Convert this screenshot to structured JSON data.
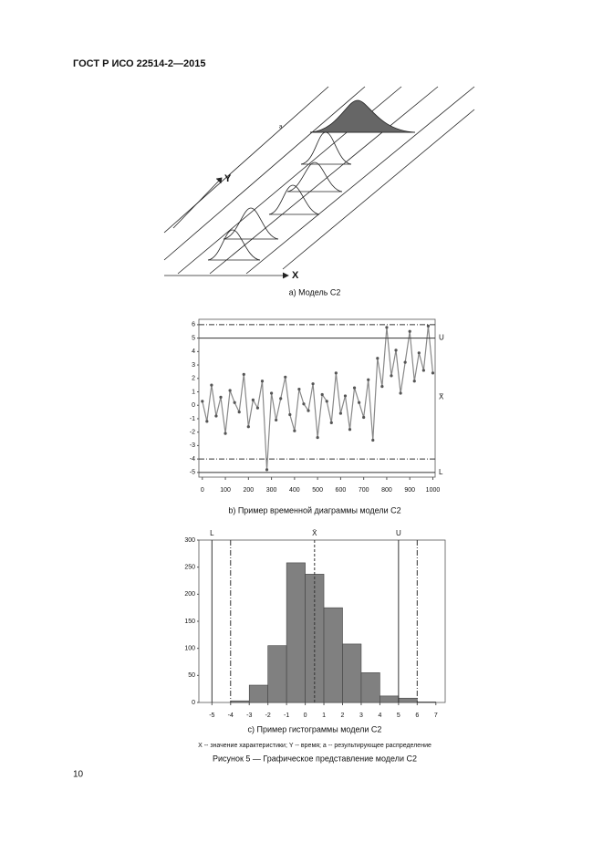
{
  "header": {
    "title": "ГОСТ Р ИСО 22514-2—2015"
  },
  "figure_a": {
    "label_y": "Y",
    "label_x": "X",
    "label_a": "a",
    "caption": "а) Модель С2"
  },
  "chart_data": [
    {
      "type": "line",
      "caption": "b) Пример временной диаграммы модели С2",
      "x": [
        0,
        20,
        40,
        60,
        80,
        100,
        120,
        140,
        160,
        180,
        200,
        220,
        240,
        260,
        280,
        300,
        320,
        340,
        360,
        380,
        400,
        420,
        440,
        460,
        480,
        500,
        520,
        540,
        560,
        580,
        600,
        620,
        640,
        660,
        680,
        700,
        720,
        740,
        760,
        780,
        800,
        820,
        840,
        860,
        880,
        900,
        920,
        940,
        960,
        980,
        1000
      ],
      "values": [
        0.3,
        -1.2,
        1.5,
        -0.8,
        0.6,
        -2.1,
        1.1,
        0.2,
        -0.5,
        2.3,
        -1.6,
        0.4,
        -0.2,
        1.8,
        -4.8,
        0.9,
        -1.1,
        0.5,
        2.1,
        -0.7,
        -1.9,
        1.2,
        0.1,
        -0.4,
        1.6,
        -2.4,
        0.8,
        0.3,
        -1.3,
        2.4,
        -0.6,
        0.7,
        -1.8,
        1.3,
        0.2,
        -0.9,
        1.9,
        -2.6,
        3.5,
        1.4,
        5.8,
        2.2,
        4.1,
        0.9,
        3.2,
        5.5,
        1.8,
        3.9,
        2.6,
        5.9,
        2.4
      ],
      "color": "#888888",
      "xlim": [
        -15,
        1010
      ],
      "ylim": [
        -5.35,
        6.4
      ],
      "xticks": [
        0,
        100,
        200,
        300,
        400,
        500,
        600,
        700,
        800,
        900,
        1000
      ],
      "yticks": [
        -5,
        -4,
        -3,
        -2,
        -1,
        0,
        1,
        2,
        3,
        4,
        5,
        6
      ],
      "ref_lines": [
        {
          "value": 5,
          "style": "solid",
          "label": "U"
        },
        {
          "value": -5,
          "style": "solid",
          "label": "L"
        },
        {
          "value": 6,
          "style": "dashdot"
        },
        {
          "value": -4,
          "style": "dashdot"
        },
        {
          "value": 0.6,
          "style": "none",
          "label": "X̄"
        }
      ]
    },
    {
      "type": "histogram",
      "caption": "с) Пример гистограммы модели С2",
      "bins": [
        -4,
        -3,
        -2,
        -1,
        0,
        1,
        2,
        3,
        4,
        5,
        6,
        7
      ],
      "values": [
        3,
        32,
        105,
        258,
        237,
        175,
        108,
        55,
        12,
        8,
        1
      ],
      "color": "#808080",
      "xlim": [
        -5.7,
        7.5
      ],
      "ylim": [
        0,
        300
      ],
      "xticks": [
        -5,
        -4,
        -3,
        -2,
        -1,
        0,
        1,
        2,
        3,
        4,
        5,
        6,
        7
      ],
      "yticks": [
        0,
        50,
        100,
        150,
        200,
        250,
        300
      ],
      "ref_lines": [
        {
          "value": -5,
          "style": "solid",
          "label": "L"
        },
        {
          "value": 5,
          "style": "solid",
          "label": "U"
        },
        {
          "value": -4,
          "style": "dashdot"
        },
        {
          "value": 6,
          "style": "dashdot"
        },
        {
          "value": 0.5,
          "style": "dashed",
          "label": "X̄"
        }
      ]
    }
  ],
  "legend_note": "X -- значение характеристики; Y -- время; а -- результирующее распределение",
  "figure_caption": "Рисунок 5 — Графическое представление модели С2",
  "page_number": "10"
}
